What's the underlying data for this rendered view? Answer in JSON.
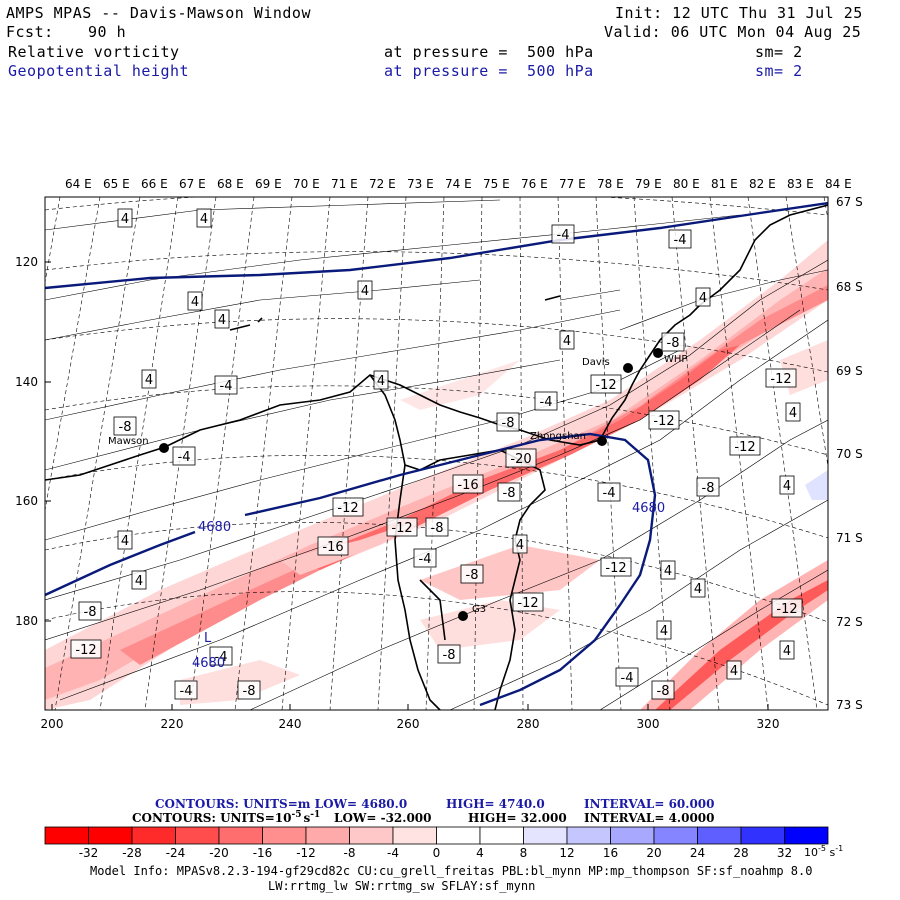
{
  "header": {
    "title": "AMPS MPAS -- Davis-Mawson Window",
    "init": "Init: 12 UTC Thu 31 Jul 25",
    "fcst_label": "Fcst:",
    "fcst_value": "90 h",
    "valid": "Valid: 06 UTC Mon 04 Aug 25",
    "field1": "Relative vorticity",
    "field1_level": "at pressure =  500 hPa",
    "field1_sm": "sm= 2",
    "field2": "Geopotential height",
    "field2_level": "at pressure =  500 hPa",
    "field2_sm": "sm= 2",
    "field2_color": "#1a1aa6"
  },
  "map": {
    "lon_labels": [
      "64 E",
      "65 E",
      "66 E",
      "67 E",
      "68 E",
      "69 E",
      "70 E",
      "71 E",
      "72 E",
      "73 E",
      "74 E",
      "75 E",
      "76 E",
      "77 E",
      "78 E",
      "79 E",
      "80 E",
      "81 E",
      "82 E",
      "83 E",
      "84 E"
    ],
    "lat_labels": [
      "67 S",
      "68 S",
      "69 S",
      "70 S",
      "71 S",
      "72 S",
      "73 S"
    ],
    "x_ticks": [
      "200",
      "220",
      "240",
      "260",
      "280",
      "300",
      "320"
    ],
    "y_ticks": [
      "120",
      "140",
      "160",
      "180"
    ],
    "stations": [
      {
        "name": "Mawson"
      },
      {
        "name": "Davis"
      },
      {
        "name": "WHP"
      },
      {
        "name": "Zhongshan"
      },
      {
        "name": "G3"
      }
    ],
    "height_contour_labels": [
      "4680",
      "4680",
      "4680"
    ],
    "low_marker": "L",
    "vorticity_labels": [
      "4",
      "-4",
      "-8",
      "-12",
      "-16",
      "-20"
    ]
  },
  "contours_info": {
    "line1": {
      "label": "CONTOURS:  UNITS=m  LOW=  4680.0",
      "high": "HIGH=  4740.0",
      "interval": "INTERVAL=   60.000"
    },
    "line2": {
      "label": "CONTOURS:  UNITS=10",
      "sup": "-5",
      "unit_tail": "s",
      "unit_sup": "-1",
      "low": "LOW=  -32.000",
      "high": "HIGH=  32.000",
      "interval": "INTERVAL=   4.0000"
    }
  },
  "colorbar": {
    "ticks": [
      "-32",
      "-28",
      "-24",
      "-20",
      "-16",
      "-12",
      "-8",
      "-4",
      "0",
      "4",
      "8",
      "12",
      "16",
      "20",
      "24",
      "28",
      "32"
    ],
    "units": "10",
    "units_sup": "-5",
    "units_tail": " s",
    "units_sup2": "-1",
    "colors": [
      "#ff0000",
      "#ff2a2a",
      "#ff4d4d",
      "#ff6e6e",
      "#ff8f8f",
      "#ffaaaa",
      "#ffc8c8",
      "#ffe2e2",
      "#ffffff",
      "#ffffff",
      "#e4e4ff",
      "#c6c6ff",
      "#a8a8ff",
      "#8585ff",
      "#5f5fff",
      "#3232ff",
      "#0000ff"
    ]
  },
  "model_info": {
    "line1": "Model Info: MPASv8.2.3-194-gf29cd82c CU:cu_grell_freitas PBL:bl_mynn MP:mp_thompson SF:sf_noahmp 8.0",
    "line2": "LW:rrtmg_lw SW:rrtmg_sw SFLAY:sf_mynn"
  }
}
